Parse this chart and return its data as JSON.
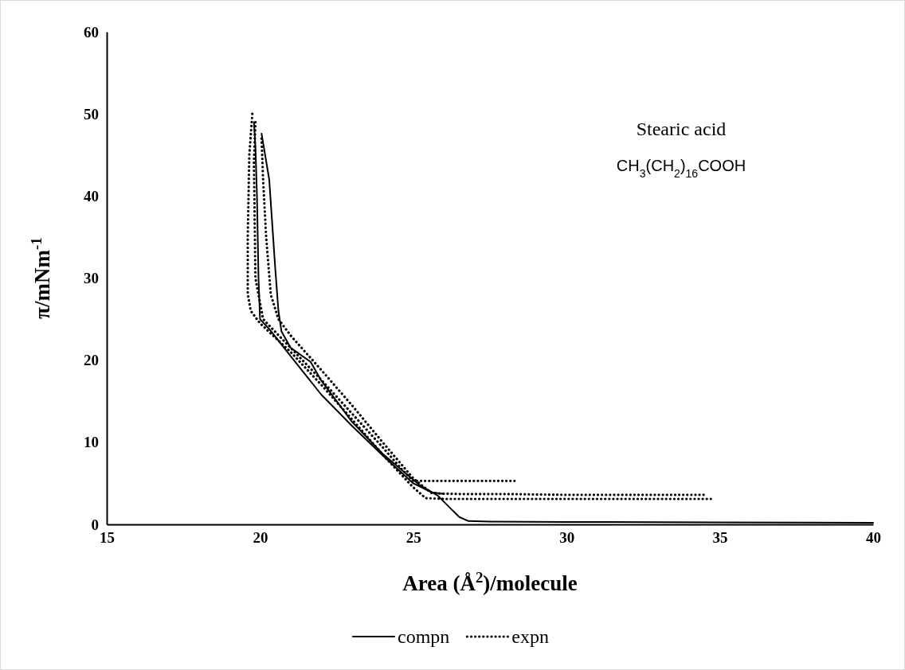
{
  "chart_data": {
    "type": "line",
    "xlabel": "Area (Å$^{2}$)/molecule",
    "ylabel": "π/mNm$^{-1}$",
    "annotations": [
      "Stearic acid",
      "CH$_{3}$(CH$_{2}$)$_{16}$COOH"
    ],
    "xlim": [
      15,
      40
    ],
    "ylim": [
      0,
      60
    ],
    "xticks": [
      15,
      20,
      25,
      30,
      35,
      40
    ],
    "yticks": [
      0,
      10,
      20,
      30,
      40,
      50,
      60
    ],
    "grid": false,
    "legend": "bottom",
    "marker": "none",
    "series": [
      {
        "name": "compn",
        "color": "#000000",
        "line_style": "solid",
        "x": [
          40,
          35,
          30,
          27.5,
          26.8,
          26.5,
          26.2,
          25.8,
          25.2,
          24,
          23,
          22,
          21.65,
          21,
          20.7,
          20.6,
          20.5,
          20.3,
          20.05
        ],
        "values": [
          0.2,
          0.25,
          0.3,
          0.35,
          0.4,
          0.9,
          2,
          3.5,
          4.8,
          8.6,
          12.5,
          17.5,
          19.8,
          21.5,
          23.5,
          26,
          31,
          42,
          47.6
        ]
      },
      {
        "color": "#000000",
        "line_style": "solid",
        "x": [
          26,
          25.6,
          25,
          24,
          23,
          22,
          21,
          20.3,
          20,
          19.95,
          19.9,
          19.85,
          19.8
        ],
        "values": [
          3.7,
          3.9,
          5,
          8.4,
          12,
          15.8,
          20.5,
          23.8,
          25,
          30,
          40,
          46,
          49
        ]
      },
      {
        "name": "expn",
        "color": "#000000",
        "line_style": "dotted",
        "x": [
          19.75,
          19.65,
          19.6,
          19.6,
          19.7,
          20,
          21,
          22,
          23,
          24,
          25,
          25.4,
          26,
          28,
          30,
          32,
          34.8
        ],
        "values": [
          50,
          45,
          35,
          28,
          26,
          24.5,
          21,
          17,
          12.8,
          8.5,
          4.5,
          3.2,
          3.1,
          3.1,
          3.1,
          3.1,
          3.1
        ]
      },
      {
        "color": "#000000",
        "line_style": "dotted",
        "x": [
          20.05,
          20.1,
          20.2,
          20.35,
          20.6,
          21,
          22,
          23,
          24,
          25,
          25.6,
          26.5,
          28,
          30,
          32,
          34.5
        ],
        "values": [
          47,
          42,
          35,
          28,
          25,
          23,
          18.8,
          14.5,
          10,
          5.6,
          3.8,
          3.7,
          3.7,
          3.6,
          3.6,
          3.6
        ]
      },
      {
        "color": "#000000",
        "line_style": "dotted",
        "x": [
          19.85,
          19.8,
          19.85,
          20.1,
          21,
          22,
          23,
          24,
          24.6,
          25,
          26,
          27,
          28.3
        ],
        "values": [
          49,
          44,
          30,
          25,
          21.5,
          17.6,
          13.5,
          9.4,
          6.8,
          5.3,
          5.3,
          5.3,
          5.3
        ]
      }
    ]
  }
}
